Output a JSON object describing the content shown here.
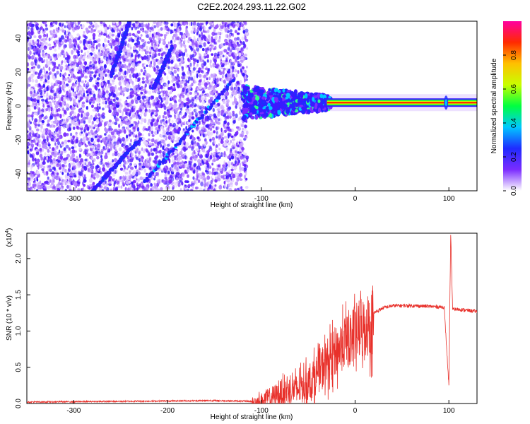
{
  "title": "C2E2.2024.293.11.22.G02",
  "chart_data": [
    {
      "type": "heatmap",
      "xlabel": "Height of straight line (km)",
      "ylabel": "Frequency (Hz)",
      "xlim": [
        -350,
        130
      ],
      "ylim": [
        -50,
        50
      ],
      "xticks": [
        -300,
        -200,
        -100,
        0,
        100
      ],
      "yticks": [
        -40,
        -20,
        0,
        20,
        40
      ],
      "colorbar": {
        "label": "Normalized spectral amplitude",
        "range": [
          0,
          1
        ],
        "ticks": [
          "0.0",
          "0.2",
          "0.4",
          "0.6",
          "0.8"
        ],
        "colormap": [
          "#ffffff",
          "#7b2cff",
          "#1f2bff",
          "#00c8ff",
          "#00ff40",
          "#c8ff00",
          "#ffc000",
          "#ff2a00",
          "#ff00a0"
        ]
      },
      "features": {
        "noise_region_x": [
          -350,
          -115
        ],
        "carrier_frequency_hz": 2,
        "carrier_x": [
          -30,
          130
        ],
        "lines": [
          {
            "x": [
              -225,
              -130
            ],
            "y": [
              -45,
              15
            ]
          },
          {
            "x": [
              -260,
              -240
            ],
            "y": [
              18,
              50
            ]
          },
          {
            "x": [
              -215,
              -195
            ],
            "y": [
              10,
              35
            ]
          },
          {
            "x": [
              -280,
              -230
            ],
            "y": [
              -50,
              -20
            ]
          }
        ],
        "cluster_x": [
          -120,
          -25
        ],
        "spike_x": 97
      }
    },
    {
      "type": "line",
      "xlabel": "Height of straight line (km)",
      "ylabel": "SNR (10 * v/v)",
      "y_multiplier": "(x10",
      "y_multiplier_exp": "4",
      "y_multiplier_close": ")",
      "xlim": [
        -350,
        130
      ],
      "ylim": [
        0,
        2.35
      ],
      "xticks": [
        -300,
        -200,
        -100,
        0,
        100
      ],
      "yticks": [
        "0.0",
        "0.5",
        "1.0",
        "1.5",
        "2.0"
      ],
      "series_color": "#e8302a",
      "x": [
        -350,
        -250,
        -150,
        -110,
        -100,
        -90,
        -80,
        -70,
        -60,
        -50,
        -40,
        -30,
        -20,
        -10,
        0,
        10,
        20,
        30,
        40,
        60,
        80,
        95,
        100,
        102,
        104,
        110,
        130
      ],
      "y": [
        0.02,
        0.03,
        0.04,
        0.03,
        0.06,
        0.12,
        0.18,
        0.22,
        0.25,
        0.35,
        0.48,
        0.65,
        0.8,
        0.95,
        1.05,
        1.15,
        1.25,
        1.32,
        1.35,
        1.35,
        1.34,
        1.33,
        0.25,
        2.35,
        1.3,
        1.3,
        1.27
      ]
    }
  ]
}
